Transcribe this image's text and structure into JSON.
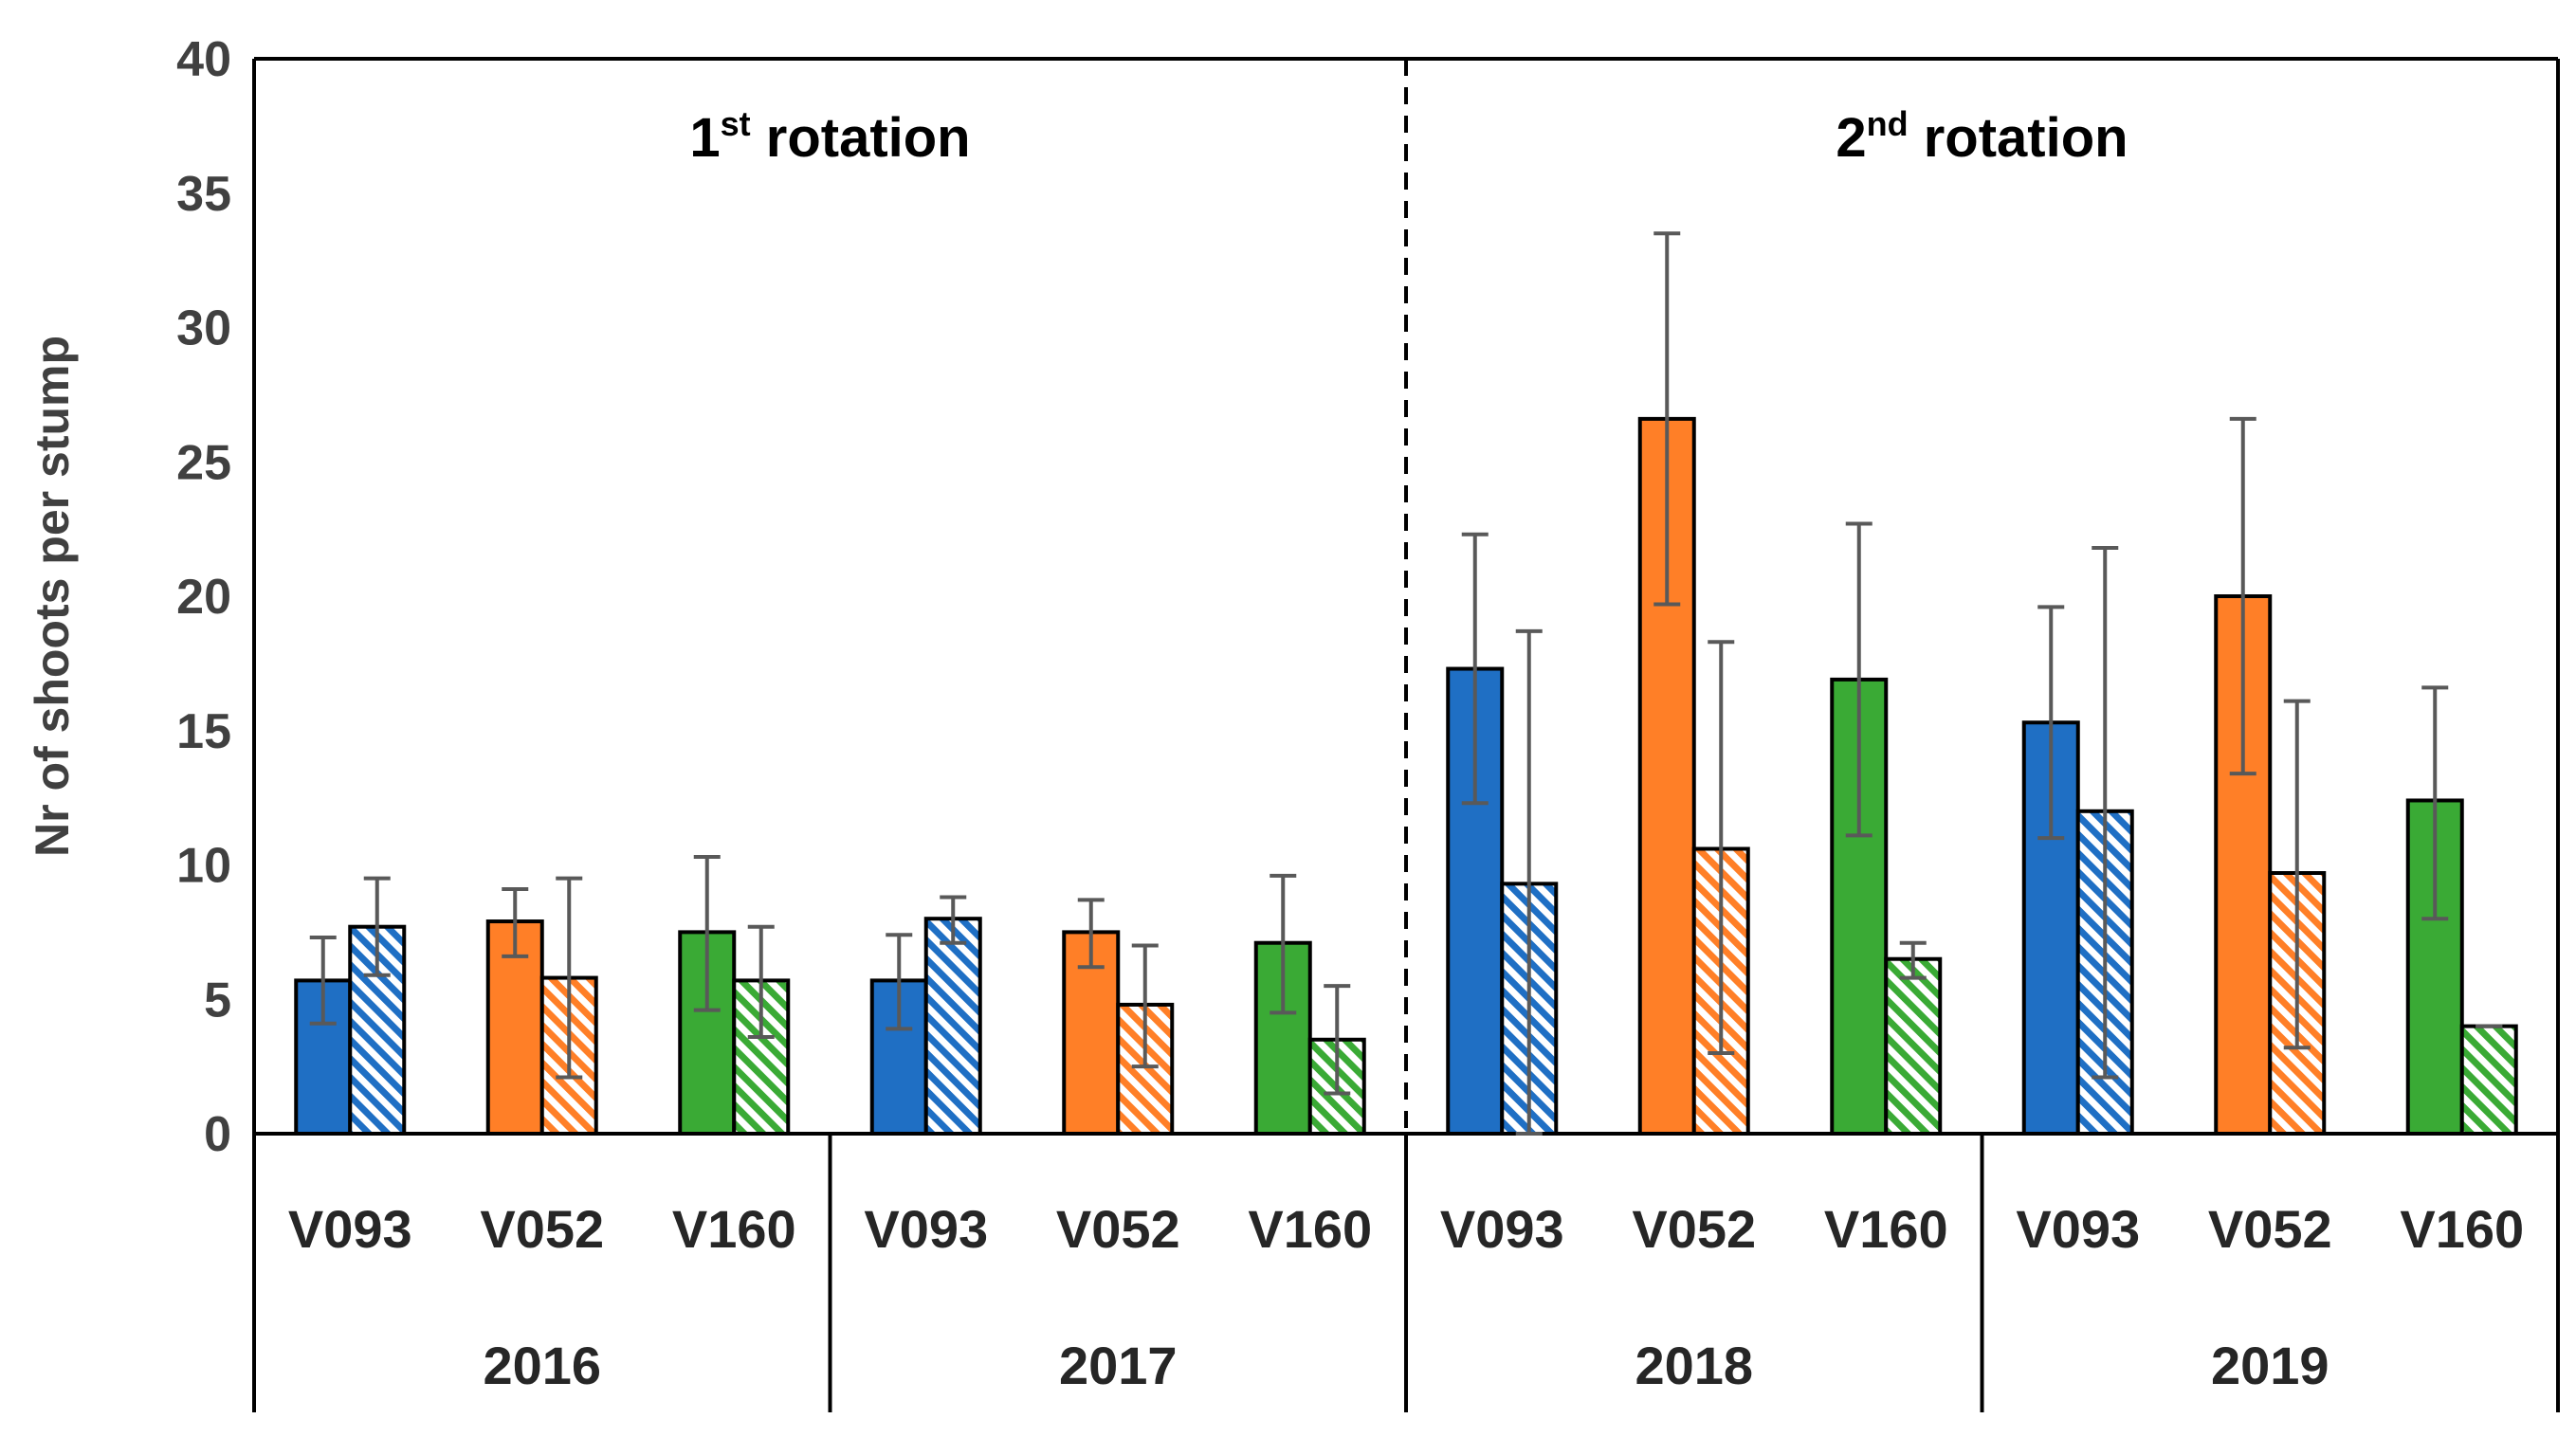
{
  "chart_data": {
    "type": "bar",
    "ylabel": "Nr of shoots per stump",
    "ylim": [
      0,
      40
    ],
    "yticks": [
      0,
      5,
      10,
      15,
      20,
      25,
      30,
      35,
      40
    ],
    "rotations": [
      {
        "num": "1",
        "sup": "st",
        "rest": " rotation"
      },
      {
        "num": "2",
        "sup": "nd",
        "rest": " rotation"
      }
    ],
    "colors": {
      "V093": "#1F6FC4",
      "V052": "#FF7F27",
      "V160": "#3AAA35"
    },
    "series_styles": [
      "solid",
      "hatched"
    ],
    "years": [
      {
        "year": "2016",
        "clones": [
          {
            "clone": "V093",
            "solid": {
              "value": 5.7,
              "err_low": 4.1,
              "err_high": 7.3
            },
            "hatched": {
              "value": 7.7,
              "err_low": 5.9,
              "err_high": 9.5
            }
          },
          {
            "clone": "V052",
            "solid": {
              "value": 7.9,
              "err_low": 6.6,
              "err_high": 9.1
            },
            "hatched": {
              "value": 5.8,
              "err_low": 2.1,
              "err_high": 9.5
            }
          },
          {
            "clone": "V160",
            "solid": {
              "value": 7.5,
              "err_low": 4.6,
              "err_high": 10.3
            },
            "hatched": {
              "value": 5.7,
              "err_low": 3.6,
              "err_high": 7.7
            }
          }
        ]
      },
      {
        "year": "2017",
        "clones": [
          {
            "clone": "V093",
            "solid": {
              "value": 5.7,
              "err_low": 3.9,
              "err_high": 7.4
            },
            "hatched": {
              "value": 8.0,
              "err_low": 7.1,
              "err_high": 8.8
            }
          },
          {
            "clone": "V052",
            "solid": {
              "value": 7.5,
              "err_low": 6.2,
              "err_high": 8.7
            },
            "hatched": {
              "value": 4.8,
              "err_low": 2.5,
              "err_high": 7.0
            }
          },
          {
            "clone": "V160",
            "solid": {
              "value": 7.1,
              "err_low": 4.5,
              "err_high": 9.6
            },
            "hatched": {
              "value": 3.5,
              "err_low": 1.5,
              "err_high": 5.5
            }
          }
        ]
      },
      {
        "year": "2018",
        "clones": [
          {
            "clone": "V093",
            "solid": {
              "value": 17.3,
              "err_low": 12.3,
              "err_high": 22.3
            },
            "hatched": {
              "value": 9.3,
              "err_low": 0.0,
              "err_high": 18.7
            }
          },
          {
            "clone": "V052",
            "solid": {
              "value": 26.6,
              "err_low": 19.7,
              "err_high": 33.5
            },
            "hatched": {
              "value": 10.6,
              "err_low": 3.0,
              "err_high": 18.3
            }
          },
          {
            "clone": "V160",
            "solid": {
              "value": 16.9,
              "err_low": 11.1,
              "err_high": 22.7
            },
            "hatched": {
              "value": 6.5,
              "err_low": 5.8,
              "err_high": 7.1
            }
          }
        ]
      },
      {
        "year": "2019",
        "clones": [
          {
            "clone": "V093",
            "solid": {
              "value": 15.3,
              "err_low": 11.0,
              "err_high": 19.6
            },
            "hatched": {
              "value": 12.0,
              "err_low": 2.1,
              "err_high": 21.8
            }
          },
          {
            "clone": "V052",
            "solid": {
              "value": 20.0,
              "err_low": 13.4,
              "err_high": 26.6
            },
            "hatched": {
              "value": 9.7,
              "err_low": 3.2,
              "err_high": 16.1
            }
          },
          {
            "clone": "V160",
            "solid": {
              "value": 12.4,
              "err_low": 8.0,
              "err_high": 16.6
            },
            "hatched": {
              "value": 4.0,
              "err_low": 4.0,
              "err_high": 4.0
            }
          }
        ]
      }
    ]
  }
}
